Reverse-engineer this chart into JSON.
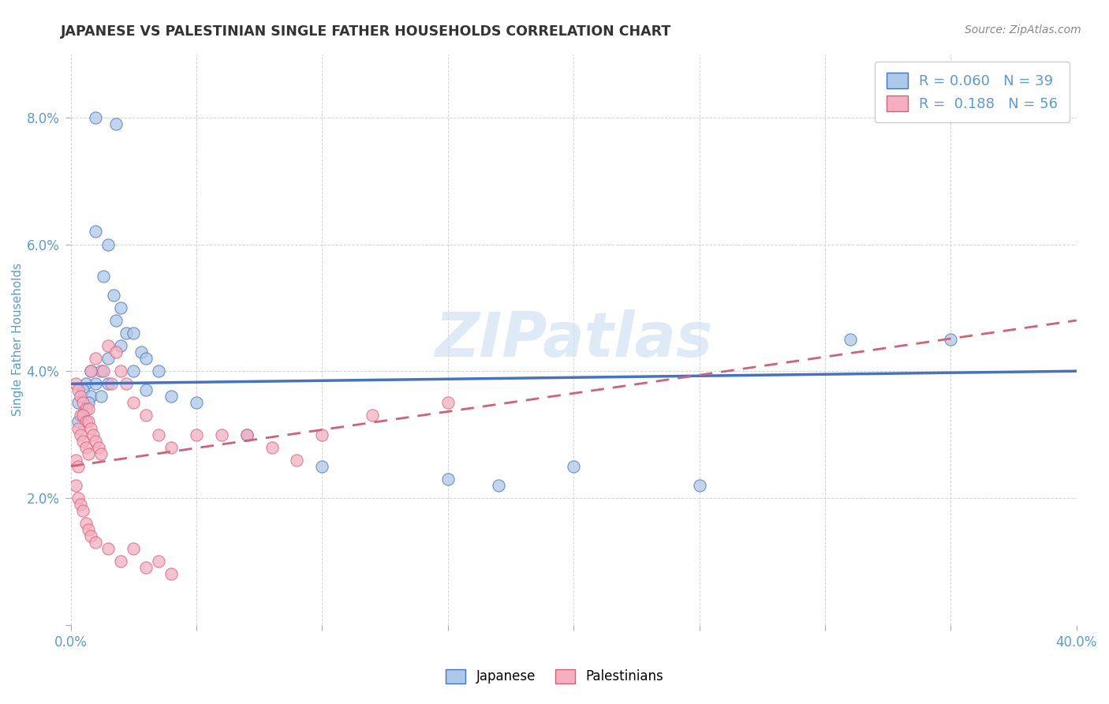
{
  "title": "JAPANESE VS PALESTINIAN SINGLE FATHER HOUSEHOLDS CORRELATION CHART",
  "source": "Source: ZipAtlas.com",
  "ylabel": "Single Father Households",
  "xlabel": "",
  "xlim": [
    0.0,
    0.4
  ],
  "ylim": [
    0.0,
    0.09
  ],
  "xtick_vals": [
    0.0,
    0.05,
    0.1,
    0.15,
    0.2,
    0.25,
    0.3,
    0.35,
    0.4
  ],
  "xtick_labels": [
    "0.0%",
    "",
    "",
    "",
    "",
    "",
    "",
    "",
    "40.0%"
  ],
  "ytick_vals": [
    0.0,
    0.02,
    0.04,
    0.06,
    0.08
  ],
  "ytick_labels": [
    "",
    "2.0%",
    "4.0%",
    "6.0%",
    "8.0%"
  ],
  "japanese_color": "#adc9e8",
  "palestinian_color": "#f5afc0",
  "japanese_line_color": "#4472c4",
  "palestinian_line_color": "#d45f7a",
  "watermark_color": "#c8ddf0",
  "japanese_R": 0.06,
  "palestinian_R": 0.188,
  "japanese_N": 39,
  "palestinian_N": 56,
  "jp_line_x0": 0.0,
  "jp_line_y0": 0.038,
  "jp_line_x1": 0.4,
  "jp_line_y1": 0.04,
  "pa_line_x0": 0.0,
  "pa_line_y0": 0.025,
  "pa_line_x1": 0.4,
  "pa_line_y1": 0.048,
  "japanese_points": [
    [
      0.01,
      0.08
    ],
    [
      0.018,
      0.079
    ],
    [
      0.01,
      0.062
    ],
    [
      0.015,
      0.06
    ],
    [
      0.013,
      0.055
    ],
    [
      0.017,
      0.052
    ],
    [
      0.02,
      0.05
    ],
    [
      0.018,
      0.048
    ],
    [
      0.022,
      0.046
    ],
    [
      0.025,
      0.046
    ],
    [
      0.02,
      0.044
    ],
    [
      0.028,
      0.043
    ],
    [
      0.015,
      0.042
    ],
    [
      0.03,
      0.042
    ],
    [
      0.012,
      0.04
    ],
    [
      0.025,
      0.04
    ],
    [
      0.008,
      0.04
    ],
    [
      0.035,
      0.04
    ],
    [
      0.006,
      0.038
    ],
    [
      0.01,
      0.038
    ],
    [
      0.015,
      0.038
    ],
    [
      0.03,
      0.037
    ],
    [
      0.005,
      0.037
    ],
    [
      0.008,
      0.036
    ],
    [
      0.012,
      0.036
    ],
    [
      0.04,
      0.036
    ],
    [
      0.003,
      0.035
    ],
    [
      0.007,
      0.035
    ],
    [
      0.05,
      0.035
    ],
    [
      0.005,
      0.033
    ],
    [
      0.003,
      0.032
    ],
    [
      0.07,
      0.03
    ],
    [
      0.1,
      0.025
    ],
    [
      0.15,
      0.023
    ],
    [
      0.17,
      0.022
    ],
    [
      0.2,
      0.025
    ],
    [
      0.25,
      0.022
    ],
    [
      0.31,
      0.045
    ],
    [
      0.35,
      0.045
    ]
  ],
  "palestinian_points": [
    [
      0.002,
      0.038
    ],
    [
      0.003,
      0.037
    ],
    [
      0.004,
      0.036
    ],
    [
      0.005,
      0.035
    ],
    [
      0.006,
      0.034
    ],
    [
      0.007,
      0.034
    ],
    [
      0.004,
      0.033
    ],
    [
      0.005,
      0.033
    ],
    [
      0.006,
      0.032
    ],
    [
      0.007,
      0.032
    ],
    [
      0.003,
      0.031
    ],
    [
      0.008,
      0.031
    ],
    [
      0.004,
      0.03
    ],
    [
      0.009,
      0.03
    ],
    [
      0.005,
      0.029
    ],
    [
      0.01,
      0.029
    ],
    [
      0.006,
      0.028
    ],
    [
      0.011,
      0.028
    ],
    [
      0.007,
      0.027
    ],
    [
      0.012,
      0.027
    ],
    [
      0.008,
      0.04
    ],
    [
      0.015,
      0.044
    ],
    [
      0.01,
      0.042
    ],
    [
      0.018,
      0.043
    ],
    [
      0.013,
      0.04
    ],
    [
      0.02,
      0.04
    ],
    [
      0.016,
      0.038
    ],
    [
      0.022,
      0.038
    ],
    [
      0.002,
      0.026
    ],
    [
      0.003,
      0.025
    ],
    [
      0.025,
      0.035
    ],
    [
      0.03,
      0.033
    ],
    [
      0.002,
      0.022
    ],
    [
      0.003,
      0.02
    ],
    [
      0.004,
      0.019
    ],
    [
      0.005,
      0.018
    ],
    [
      0.035,
      0.03
    ],
    [
      0.04,
      0.028
    ],
    [
      0.006,
      0.016
    ],
    [
      0.007,
      0.015
    ],
    [
      0.008,
      0.014
    ],
    [
      0.05,
      0.03
    ],
    [
      0.06,
      0.03
    ],
    [
      0.07,
      0.03
    ],
    [
      0.08,
      0.028
    ],
    [
      0.09,
      0.026
    ],
    [
      0.1,
      0.03
    ],
    [
      0.12,
      0.033
    ],
    [
      0.01,
      0.013
    ],
    [
      0.015,
      0.012
    ],
    [
      0.02,
      0.01
    ],
    [
      0.025,
      0.012
    ],
    [
      0.03,
      0.009
    ],
    [
      0.035,
      0.01
    ],
    [
      0.04,
      0.008
    ],
    [
      0.15,
      0.035
    ]
  ],
  "background_color": "#ffffff",
  "grid_color": "#d0d0d0",
  "title_color": "#333333",
  "axis_label_color": "#5b9bd5",
  "tick_label_color": "#5b9bd5"
}
